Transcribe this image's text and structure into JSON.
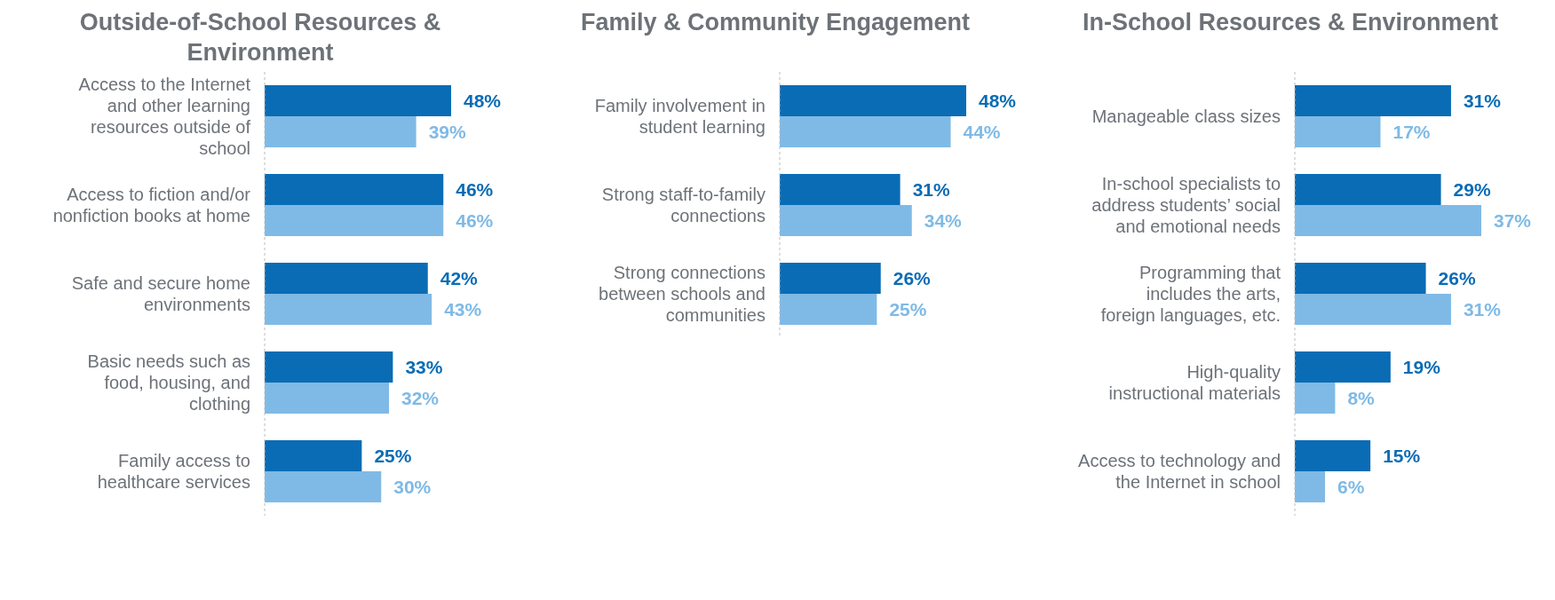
{
  "chart_data": [
    {
      "type": "bar",
      "orientation": "horizontal",
      "title": "Outside-of-School Resources & Environment",
      "categories": [
        "Access to the Internet and other learning resources outside of school",
        "Access to fiction and/or nonfiction books at home",
        "Safe and secure home environments",
        "Basic needs such as food, housing, and clothing",
        "Family access to healthcare services"
      ],
      "tick_labels": "y",
      "series": [
        {
          "color": "#0a6cb5",
          "values": [
            48,
            46,
            42,
            33,
            25
          ],
          "value_labels": [
            "48%",
            "46%",
            "42%",
            "33%",
            "25%"
          ]
        },
        {
          "color": "#7fbae6",
          "values": [
            39,
            46,
            43,
            32,
            30
          ],
          "value_labels": [
            "39%",
            "46%",
            "43%",
            "32%",
            "30%"
          ]
        }
      ]
    },
    {
      "type": "bar",
      "orientation": "horizontal",
      "title": "Family & Community Engagement",
      "categories": [
        "Family involvement in student learning",
        "Strong staff-to-family connections",
        "Strong connections between schools and communities"
      ],
      "tick_labels": "y",
      "series": [
        {
          "color": "#0a6cb5",
          "values": [
            48,
            31,
            26
          ],
          "value_labels": [
            "48%",
            "31%",
            "26%"
          ]
        },
        {
          "color": "#7fbae6",
          "values": [
            44,
            34,
            25
          ],
          "value_labels": [
            "44%",
            "34%",
            "25%"
          ]
        }
      ]
    },
    {
      "type": "bar",
      "orientation": "horizontal",
      "title": "In-School Resources & Environment",
      "categories": [
        "Manageable class sizes",
        "In-school specialists to address students’ social and emotional needs",
        "Programming that includes the arts, foreign languages, etc.",
        "High-quality instructional materials",
        "Access to technology and the Internet in school"
      ],
      "tick_labels": "y",
      "series": [
        {
          "color": "#0a6cb5",
          "values": [
            31,
            29,
            26,
            19,
            15
          ],
          "value_labels": [
            "31%",
            "29%",
            "26%",
            "19%",
            "15%"
          ]
        },
        {
          "color": "#7fbae6",
          "values": [
            17,
            37,
            31,
            8,
            6
          ],
          "value_labels": [
            "17%",
            "37%",
            "31%",
            "8%",
            "6%"
          ]
        }
      ]
    }
  ]
}
